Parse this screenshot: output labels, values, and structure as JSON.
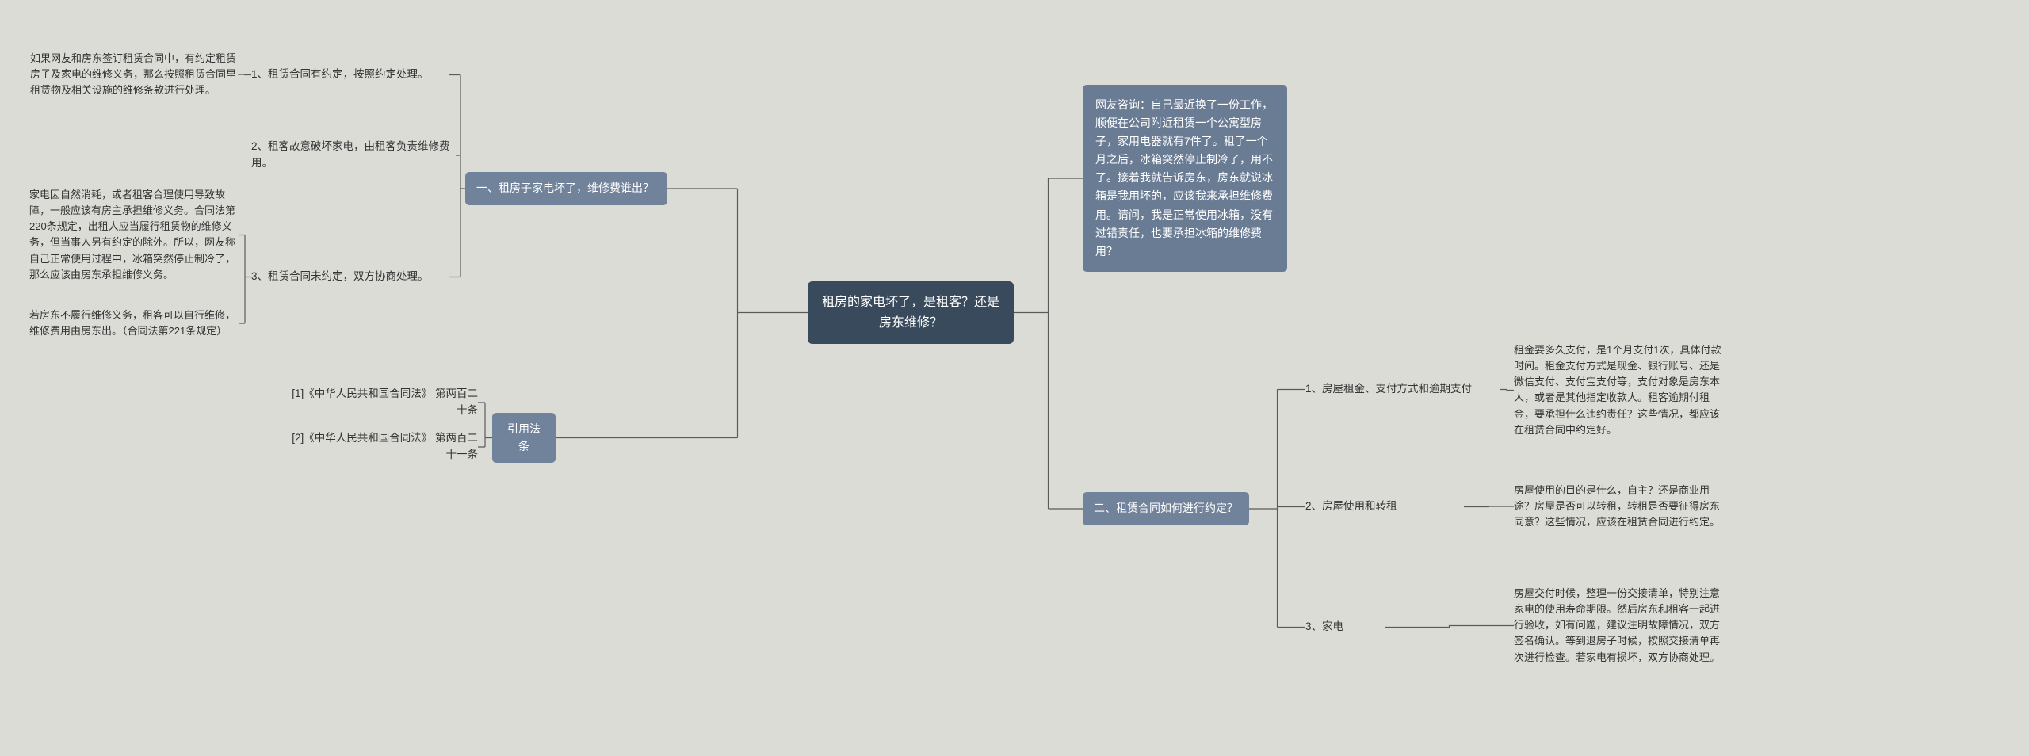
{
  "colors": {
    "background": "#dcdcd7",
    "root_fill": "#394a5c",
    "branch_fill": "#71829b",
    "consult_fill": "#6a7b94",
    "line": "#5a5a5a",
    "text_dark": "#333333",
    "text_light": "#ffffff"
  },
  "root": {
    "text": "租房的家电坏了，是租客？还是房东维修？"
  },
  "consult": {
    "text": "网友咨询：自己最近换了一份工作，顺便在公司附近租赁一个公寓型房子，家用电器就有7件了。租了一个月之后，冰箱突然停止制冷了，用不了。接着我就告诉房东，房东就说冰箱是我用坏的，应该我来承担维修费用。请问，我是正常使用冰箱，没有过错责任，也要承担冰箱的维修费用？"
  },
  "branch_q1": {
    "title": "一、租房子家电坏了，维修费谁出？",
    "s1": {
      "text": "1、租赁合同有约定，按照约定处理。",
      "detail": "如果网友和房东签订租赁合同中，有约定租赁房子及家电的维修义务，那么按照租赁合同里租赁物及相关设施的维修条款进行处理。"
    },
    "s2": {
      "text": "2、租客故意破坏家电，由租客负责维修费用。"
    },
    "s3": {
      "text": "3、租赁合同未约定，双方协商处理。",
      "detail_a": "家电因自然消耗，或者租客合理使用导致故障，一般应该有房主承担维修义务。合同法第220条规定，出租人应当履行租赁物的维修义务，但当事人另有约定的除外。所以，网友称自己正常使用过程中，冰箱突然停止制冷了，那么应该由房东承担维修义务。",
      "detail_b": "若房东不履行维修义务，租客可以自行维修，维修费用由房东出。（合同法第221条规定）"
    }
  },
  "branch_law": {
    "title": "引用法条",
    "c1": "[1]《中华人民共和国合同法》 第两百二十条",
    "c2": "[2]《中华人民共和国合同法》 第两百二十一条"
  },
  "branch_q2": {
    "title": "二、租赁合同如何进行约定？",
    "s1": {
      "text": "1、房屋租金、支付方式和逾期支付",
      "detail": "租金要多久支付，是1个月支付1次，具体付款时间。租金支付方式是现金、银行账号、还是微信支付、支付宝支付等，支付对象是房东本人，或者是其他指定收款人。租客逾期付租金，要承担什么违约责任？这些情况，都应该在租赁合同中约定好。"
    },
    "s2": {
      "text": "2、房屋使用和转租",
      "detail": "房屋使用的目的是什么，自主？还是商业用途？房屋是否可以转租，转租是否要征得房东同意？这些情况，应该在租赁合同进行约定。"
    },
    "s3": {
      "text": "3、家电",
      "detail": "房屋交付时候，整理一份交接清单，特别注意家电的使用寿命期限。然后房东和租客一起进行验收，如有问题，建议注明故障情况，双方签名确认。等到退房子时候，按照交接清单再次进行检查。若家电有损坏，双方协商处理。"
    }
  }
}
